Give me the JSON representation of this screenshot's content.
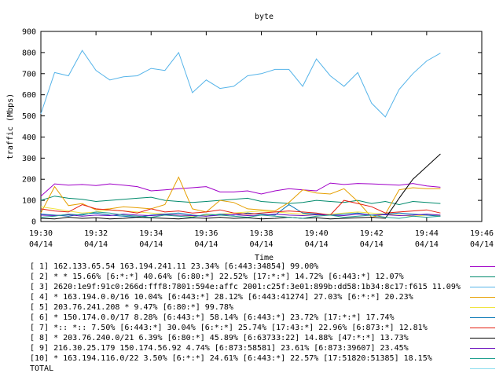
{
  "chart_data": {
    "type": "line",
    "title": "byte",
    "xlabel": "Time",
    "ylabel": "traffic (Mbps)",
    "ylim": [
      0,
      900
    ],
    "xlim": [
      "19:30",
      "19:46"
    ],
    "y_ticks": [
      "0",
      "100",
      "200",
      "300",
      "400",
      "500",
      "600",
      "700",
      "800",
      "900"
    ],
    "x_ticks": [
      {
        "time": "19:30",
        "date": "04/14"
      },
      {
        "time": "19:32",
        "date": "04/14"
      },
      {
        "time": "19:34",
        "date": "04/14"
      },
      {
        "time": "19:36",
        "date": "04/14"
      },
      {
        "time": "19:38",
        "date": "04/14"
      },
      {
        "time": "19:40",
        "date": "04/14"
      },
      {
        "time": "19:42",
        "date": "04/14"
      },
      {
        "time": "19:44",
        "date": "04/14"
      },
      {
        "time": "19:46",
        "date": "04/14"
      }
    ],
    "grid": false,
    "legend_position": "bottom",
    "x_minutes": [
      0,
      0.5,
      1,
      1.5,
      2,
      2.5,
      3,
      3.5,
      4,
      4.5,
      5,
      5.5,
      6,
      6.5,
      7,
      7.5,
      8,
      8.5,
      9,
      9.5,
      10,
      10.5,
      11,
      11.5,
      12,
      12.5,
      13,
      13.5,
      14,
      14.5
    ],
    "series": [
      {
        "name": "[ 1] 162.133.65.54 163.194.241.11 23.34% [6:443:34854] 99.00%",
        "color": "#a000c8",
        "values": [
          120,
          178,
          172,
          175,
          170,
          178,
          172,
          165,
          145,
          150,
          155,
          160,
          165,
          140,
          140,
          145,
          130,
          145,
          155,
          150,
          145,
          182,
          175,
          180,
          178,
          175,
          172,
          180,
          168,
          162
        ]
      },
      {
        "name": "[ 2] * * 15.66% [6:*:*] 40.64% [6:80:*] 22.52% [17:*:*] 14.72% [6:443:*] 12.07%",
        "color": "#008a6c",
        "values": [
          100,
          120,
          110,
          105,
          95,
          100,
          105,
          110,
          115,
          100,
          95,
          90,
          95,
          100,
          105,
          110,
          95,
          90,
          85,
          90,
          100,
          95,
          90,
          100,
          85,
          95,
          80,
          95,
          90,
          85
        ]
      },
      {
        "name": "[ 3] 2620:1e9f:91c0:266d:fff8:7801:594e:affc 2001:c25f:3e01:899b:dd58:1b34:8c17:f615 11.09%",
        "color": "#56b4e9",
        "values": [
          510,
          705,
          690,
          810,
          715,
          670,
          685,
          690,
          725,
          715,
          800,
          610,
          670,
          630,
          640,
          690,
          700,
          720,
          720,
          640,
          770,
          690,
          640,
          705,
          560,
          495,
          625,
          700,
          760,
          797
        ]
      },
      {
        "name": "[ 4] * 163.194.0.0/16 10.04% [6:443:*] 28.12% [6:443:41274] 27.03% [6:*:*] 20.23%",
        "color": "#e69f00",
        "values": [
          40,
          165,
          75,
          85,
          55,
          60,
          70,
          65,
          60,
          80,
          210,
          60,
          45,
          100,
          90,
          60,
          55,
          50,
          90,
          150,
          135,
          130,
          155,
          95,
          20,
          35,
          150,
          160,
          155,
          155
        ]
      },
      {
        "name": "[ 5] 203.76.241.208 * 9.47% [6:80:*] 99.78%",
        "color": "#f0e442",
        "values": [
          70,
          60,
          50,
          40,
          45,
          55,
          50,
          45,
          40,
          35,
          30,
          25,
          30,
          35,
          40,
          45,
          50,
          45,
          40,
          35,
          30,
          35,
          40,
          45,
          40,
          35,
          30,
          25,
          30,
          28
        ]
      },
      {
        "name": "[ 6] * 150.174.0.0/17 8.28% [6:443:*] 58.14% [6:443:*] 23.72% [17:*:*] 17.74%",
        "color": "#0072b2",
        "values": [
          35,
          30,
          25,
          35,
          40,
          30,
          25,
          20,
          30,
          35,
          40,
          30,
          25,
          35,
          30,
          40,
          35,
          30,
          80,
          40,
          35,
          30,
          35,
          40,
          30,
          35,
          40,
          35,
          30,
          25
        ]
      },
      {
        "name": "[ 7] *:: *:: 7.50% [6:443:*] 30.04% [6:*:*] 25.74% [17:43:*] 22.96% [6:873:*] 12.81%",
        "color": "#e51e10",
        "values": [
          60,
          50,
          45,
          80,
          60,
          55,
          50,
          40,
          60,
          45,
          50,
          40,
          45,
          55,
          40,
          35,
          40,
          45,
          50,
          45,
          40,
          30,
          100,
          85,
          70,
          40,
          45,
          50,
          55,
          40
        ]
      },
      {
        "name": "[ 8] * 203.76.240.0/21 6.39% [6:80:*] 45.89% [6:63733:22] 14.88% [47:*:*] 13.73%",
        "color": "#000000",
        "values": [
          15,
          12,
          20,
          15,
          18,
          12,
          15,
          20,
          18,
          15,
          12,
          18,
          15,
          20,
          15,
          18,
          12,
          15,
          20,
          15,
          18,
          12,
          15,
          18,
          20,
          15,
          110,
          200,
          260,
          320
        ]
      },
      {
        "name": "[ 9] 216.30.25.179 150.174.56.92 4.74% [6:873:58581] 23.61% [6:873:39607] 23.45%",
        "color": "#6a0fbf",
        "values": [
          30,
          28,
          32,
          25,
          30,
          28,
          35,
          30,
          28,
          32,
          30,
          28,
          25,
          30,
          32,
          28,
          30,
          35,
          30,
          28,
          32,
          30,
          28,
          35,
          30,
          32,
          28,
          30,
          35,
          30
        ]
      },
      {
        "name": "[10] * 163.194.116.0/22 3.50% [6:*:*] 24.61% [6:443:*] 22.57% [17:51820:51385] 18.15%",
        "color": "#20a090",
        "values": [
          20,
          25,
          35,
          30,
          45,
          40,
          30,
          25,
          20,
          30,
          25,
          20,
          35,
          30,
          25,
          20,
          30,
          25,
          20,
          15,
          25,
          30,
          20,
          25,
          30,
          20,
          15,
          25,
          20,
          25
        ]
      },
      {
        "name": "TOTAL",
        "color": "#88ddee",
        "values": []
      }
    ]
  }
}
